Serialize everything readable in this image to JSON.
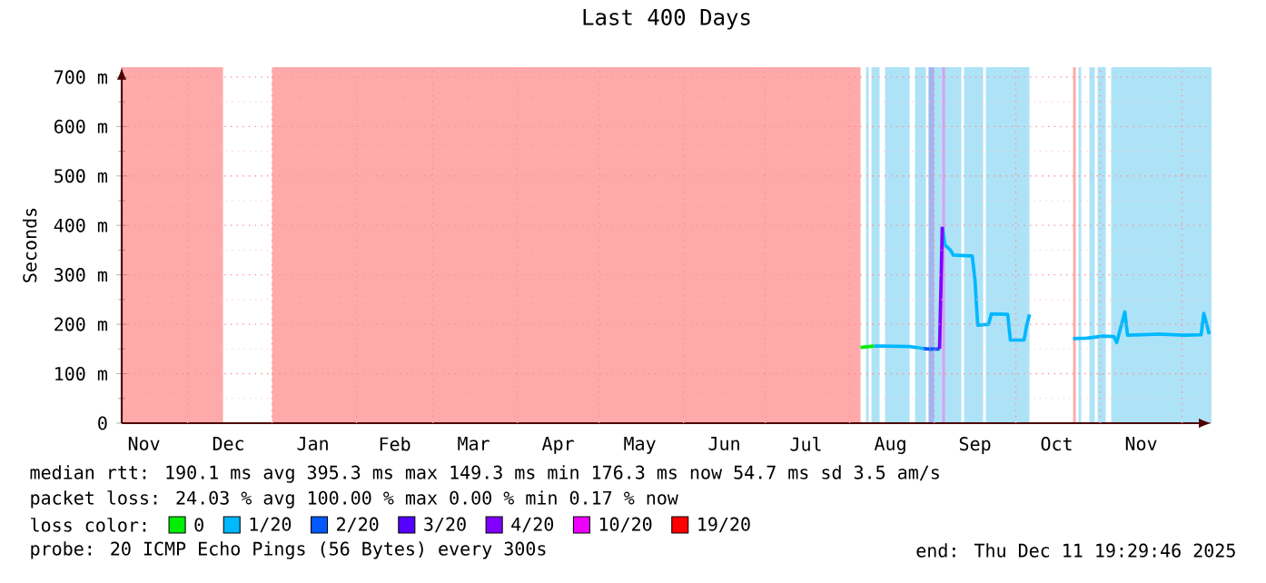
{
  "chart_data": {
    "type": "line",
    "title": "Last 400 Days",
    "ylabel": "Seconds",
    "xlim": [
      "2024-11-06T19:29",
      "2025-12-11T19:29"
    ],
    "ylim": [
      0,
      720
    ],
    "yticks": [
      {
        "value": 0,
        "label": "0"
      },
      {
        "value": 100,
        "label": "100 m"
      },
      {
        "value": 200,
        "label": "200 m"
      },
      {
        "value": 300,
        "label": "300 m"
      },
      {
        "value": 400,
        "label": "400 m"
      },
      {
        "value": 500,
        "label": "500 m"
      },
      {
        "value": 600,
        "label": "600 m"
      },
      {
        "value": 700,
        "label": "700 m"
      },
      {
        "value": 50,
        "label": null
      },
      {
        "value": 150,
        "label": null
      },
      {
        "value": 250,
        "label": null
      },
      {
        "value": 350,
        "label": null
      },
      {
        "value": 450,
        "label": null
      },
      {
        "value": 550,
        "label": null
      },
      {
        "value": 650,
        "label": null
      }
    ],
    "xticks": [
      {
        "value": "2024-11-15",
        "label": "Nov"
      },
      {
        "value": "2024-12-16",
        "label": "Dec"
      },
      {
        "value": "2025-01-16",
        "label": "Jan"
      },
      {
        "value": "2025-02-15",
        "label": "Feb"
      },
      {
        "value": "2025-03-16",
        "label": "Mar"
      },
      {
        "value": "2025-04-16",
        "label": "Apr"
      },
      {
        "value": "2025-05-16",
        "label": "May"
      },
      {
        "value": "2025-06-16",
        "label": "Jun"
      },
      {
        "value": "2025-07-16",
        "label": "Jul"
      },
      {
        "value": "2025-08-16",
        "label": "Aug"
      },
      {
        "value": "2025-09-16",
        "label": "Sep"
      },
      {
        "value": "2025-10-16",
        "label": "Oct"
      },
      {
        "value": "2025-11-16",
        "label": "Nov"
      },
      {
        "value": "2024-12-01",
        "label": null
      },
      {
        "value": "2025-01-01",
        "label": null
      },
      {
        "value": "2025-02-01",
        "label": null
      },
      {
        "value": "2025-03-01",
        "label": null
      },
      {
        "value": "2025-04-01",
        "label": null
      },
      {
        "value": "2025-05-01",
        "label": null
      },
      {
        "value": "2025-06-01",
        "label": null
      },
      {
        "value": "2025-07-01",
        "label": null
      },
      {
        "value": "2025-08-01",
        "label": null
      },
      {
        "value": "2025-09-01",
        "label": null
      },
      {
        "value": "2025-10-01",
        "label": null
      },
      {
        "value": "2025-11-01",
        "label": null
      },
      {
        "value": "2025-12-01",
        "label": null
      }
    ],
    "grid": true,
    "legend": "bottom",
    "legend_title": "loss color:",
    "series": [
      {
        "name": "0",
        "color": "#00ee00",
        "x": [
          "2025-08-05",
          "2025-08-08",
          "2025-08-10"
        ],
        "values": [
          153,
          155,
          156
        ]
      },
      {
        "name": "1/20",
        "color": "#00b8ff",
        "x": [
          "2025-08-10",
          "2025-08-14",
          "2025-08-23",
          "2025-08-28",
          "2025-08-30",
          "2025-09-04",
          "2025-09-05",
          "2025-09-07",
          "2025-09-08",
          "2025-09-15",
          "2025-09-16",
          "2025-09-17",
          "2025-09-21",
          "2025-09-22",
          "2025-09-28",
          "2025-09-29",
          "2025-10-04",
          "2025-10-05",
          "2025-10-06",
          "2025-10-15",
          "2025-10-22",
          "2025-10-27",
          "2025-11-02",
          "2025-11-06",
          "2025-11-07",
          "2025-11-08",
          "2025-11-10",
          "2025-11-11",
          "2025-11-22",
          "2025-12-02",
          "2025-12-08",
          "2025-12-09",
          "2025-12-11"
        ],
        "values": [
          156,
          156,
          155,
          151,
          null,
          397,
          360,
          350,
          340,
          338,
          290,
          198,
          200,
          221,
          220,
          168,
          168,
          198,
          220,
          null,
          171,
          172,
          176,
          175,
          163,
          183,
          225,
          178,
          180,
          178,
          179,
          222,
          180
        ]
      },
      {
        "name": "2/20",
        "color": "#0059ff",
        "x": [
          "2025-08-28",
          "2025-08-30",
          "2025-09-03"
        ],
        "values": [
          151,
          150,
          150
        ]
      },
      {
        "name": "3/20",
        "color": "#5500ff"
      },
      {
        "name": "4/20",
        "color": "#7f00ff",
        "x": [
          "2025-09-03",
          "2025-09-04"
        ],
        "values": [
          150,
          397
        ]
      },
      {
        "name": "10/20",
        "color": "#ee00ff"
      },
      {
        "name": "19/20",
        "color": "#ff0000"
      }
    ],
    "bands": [
      {
        "axis": "x",
        "from": "2024-11-06T19:29",
        "to": "2024-12-14",
        "color": "#ffaaaa"
      },
      {
        "axis": "x",
        "from": "2025-01-01",
        "to": "2025-08-05",
        "color": "#ffaaaa"
      },
      {
        "axis": "x",
        "from": "2025-08-07",
        "to": "2025-08-08",
        "color": "#aee3f7"
      },
      {
        "axis": "x",
        "from": "2025-08-09",
        "to": "2025-08-12",
        "color": "#aee3f7"
      },
      {
        "axis": "x",
        "from": "2025-08-14",
        "to": "2025-08-23",
        "color": "#aee3f7"
      },
      {
        "axis": "x",
        "from": "2025-08-25",
        "to": "2025-08-29",
        "color": "#aee3f7"
      },
      {
        "axis": "x",
        "from": "2025-08-30",
        "to": "2025-09-11",
        "color": "#aee3f7"
      },
      {
        "axis": "x",
        "from": "2025-08-30",
        "to": "2025-09-01",
        "color": "#a3b4ee"
      },
      {
        "axis": "x",
        "from": "2025-09-04",
        "to": "2025-09-05",
        "color": "#d9a0f0"
      },
      {
        "axis": "x",
        "from": "2025-09-12",
        "to": "2025-09-19",
        "color": "#aee3f7"
      },
      {
        "axis": "x",
        "from": "2025-09-20",
        "to": "2025-10-06",
        "color": "#aee3f7"
      },
      {
        "axis": "x",
        "from": "2025-10-22",
        "to": "2025-10-23",
        "color": "#ffaaaa"
      },
      {
        "axis": "x",
        "from": "2025-10-24",
        "to": "2025-10-25",
        "color": "#aee3f7"
      },
      {
        "axis": "x",
        "from": "2025-10-28",
        "to": "2025-10-30",
        "color": "#aee3f7"
      },
      {
        "axis": "x",
        "from": "2025-10-31",
        "to": "2025-11-03",
        "color": "#aee3f7"
      },
      {
        "axis": "x",
        "from": "2025-11-05",
        "to": "2025-12-11T19:29",
        "color": "#aee3f7"
      }
    ],
    "annotations": [
      "median rtt:  190.1 ms avg  395.3 ms max  149.3 ms min  176.3 ms now  54.7 ms sd  3.5   am/s",
      "packet loss: 24.03 % avg  100.00 % max  0.00 % min  0.17 % now",
      "probe:       20 ICMP Echo Pings (56 Bytes) every 300s",
      "end: Thu Dec 11 19:29:46 2025"
    ]
  }
}
